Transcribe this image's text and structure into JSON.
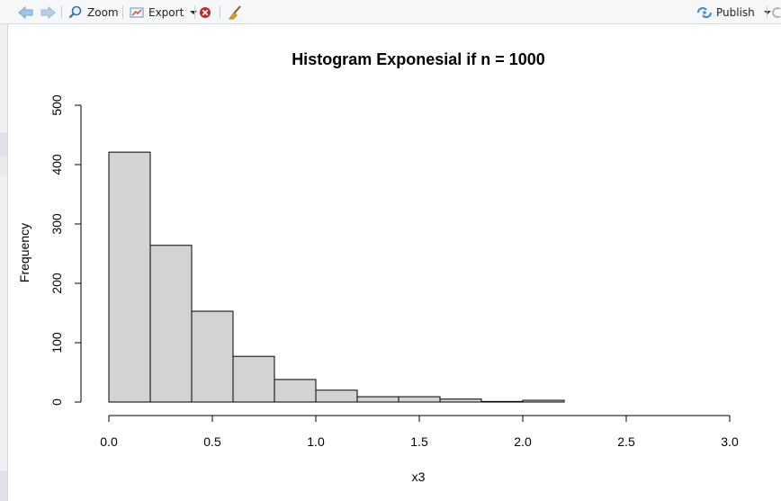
{
  "toolbar": {
    "zoom_label": "Zoom",
    "export_label": "Export",
    "publish_label": "Publish",
    "icons": [
      "back-arrow-icon",
      "forward-arrow-icon",
      "zoom-icon",
      "export-icon",
      "remove-plot-icon",
      "broom-icon",
      "publish-icon"
    ]
  },
  "chart_data": {
    "type": "bar",
    "title": "Histogram Exponesial if n = 1000",
    "xlabel": "x3",
    "ylabel": "Frequency",
    "xlim": [
      0,
      3
    ],
    "ylim": [
      0,
      500
    ],
    "xticks": [
      "0.0",
      "0.5",
      "1.0",
      "1.5",
      "2.0",
      "2.5",
      "3.0"
    ],
    "yticks": [
      "0",
      "100",
      "200",
      "300",
      "400",
      "500"
    ],
    "bins": [
      {
        "x0": 0.0,
        "x1": 0.2,
        "count": 421
      },
      {
        "x0": 0.2,
        "x1": 0.4,
        "count": 264
      },
      {
        "x0": 0.4,
        "x1": 0.6,
        "count": 153
      },
      {
        "x0": 0.6,
        "x1": 0.8,
        "count": 77
      },
      {
        "x0": 0.8,
        "x1": 1.0,
        "count": 38
      },
      {
        "x0": 1.0,
        "x1": 1.2,
        "count": 20
      },
      {
        "x0": 1.2,
        "x1": 1.4,
        "count": 9
      },
      {
        "x0": 1.4,
        "x1": 1.6,
        "count": 9
      },
      {
        "x0": 1.6,
        "x1": 1.8,
        "count": 5
      },
      {
        "x0": 1.8,
        "x1": 2.0,
        "count": 1
      },
      {
        "x0": 2.0,
        "x1": 2.2,
        "count": 3
      }
    ],
    "bar_fill": "#d3d3d3",
    "bar_stroke": "#000000",
    "grid": false
  }
}
